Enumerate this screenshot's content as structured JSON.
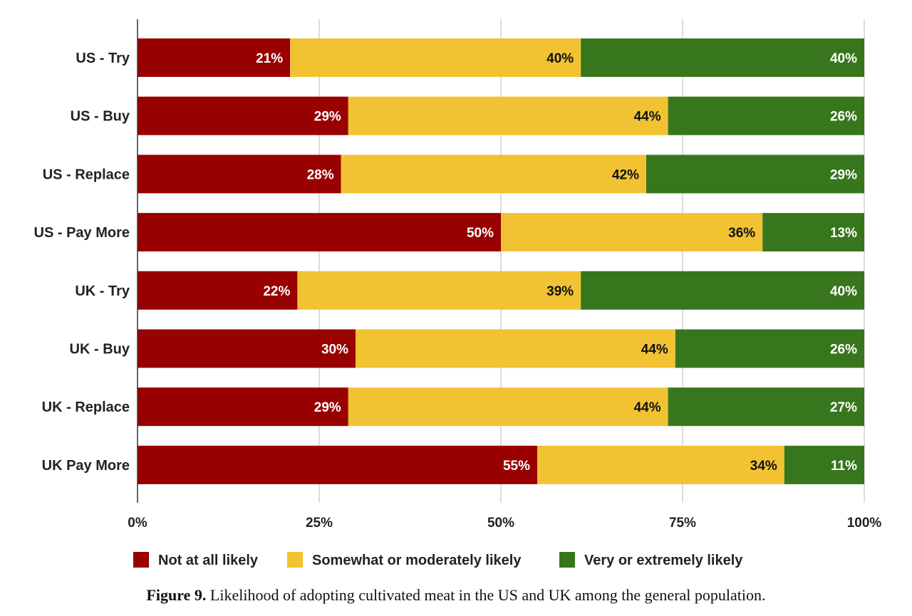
{
  "chart_data": {
    "type": "bar",
    "orientation": "horizontal",
    "stacked": true,
    "categories": [
      "US - Try",
      "US - Buy",
      "US - Replace",
      "US - Pay More",
      "UK - Try",
      "UK - Buy",
      "UK - Replace",
      "UK Pay More"
    ],
    "series": [
      {
        "name": "Not at all likely",
        "color": "#990000",
        "label_color": "#ffffff",
        "values": [
          21,
          29,
          28,
          50,
          22,
          30,
          29,
          55
        ],
        "labels": [
          "21%",
          "29%",
          "28%",
          "50%",
          "22%",
          "30%",
          "29%",
          "55%"
        ]
      },
      {
        "name": "Somewhat or moderately likely",
        "color": "#f1c232",
        "label_color": "#111111",
        "values": [
          40,
          44,
          42,
          36,
          39,
          44,
          44,
          34
        ],
        "labels": [
          "40%",
          "44%",
          "42%",
          "36%",
          "39%",
          "44%",
          "44%",
          "34%"
        ]
      },
      {
        "name": "Very or extremely likely",
        "color": "#38761d",
        "label_color": "#ffffff",
        "values": [
          40,
          26,
          29,
          13,
          40,
          26,
          27,
          11
        ],
        "labels": [
          "40%",
          "26%",
          "29%",
          "13%",
          "40%",
          "26%",
          "27%",
          "11%"
        ]
      }
    ],
    "xticks": [
      "0%",
      "25%",
      "50%",
      "75%",
      "100%"
    ],
    "xlim": [
      0,
      100
    ],
    "grid": true,
    "legend_position": "bottom",
    "title": "",
    "xlabel": "",
    "ylabel": ""
  },
  "caption": {
    "label": "Figure 9.",
    "text": " Likelihood of adopting cultivated meat in the US and UK among the general population."
  }
}
